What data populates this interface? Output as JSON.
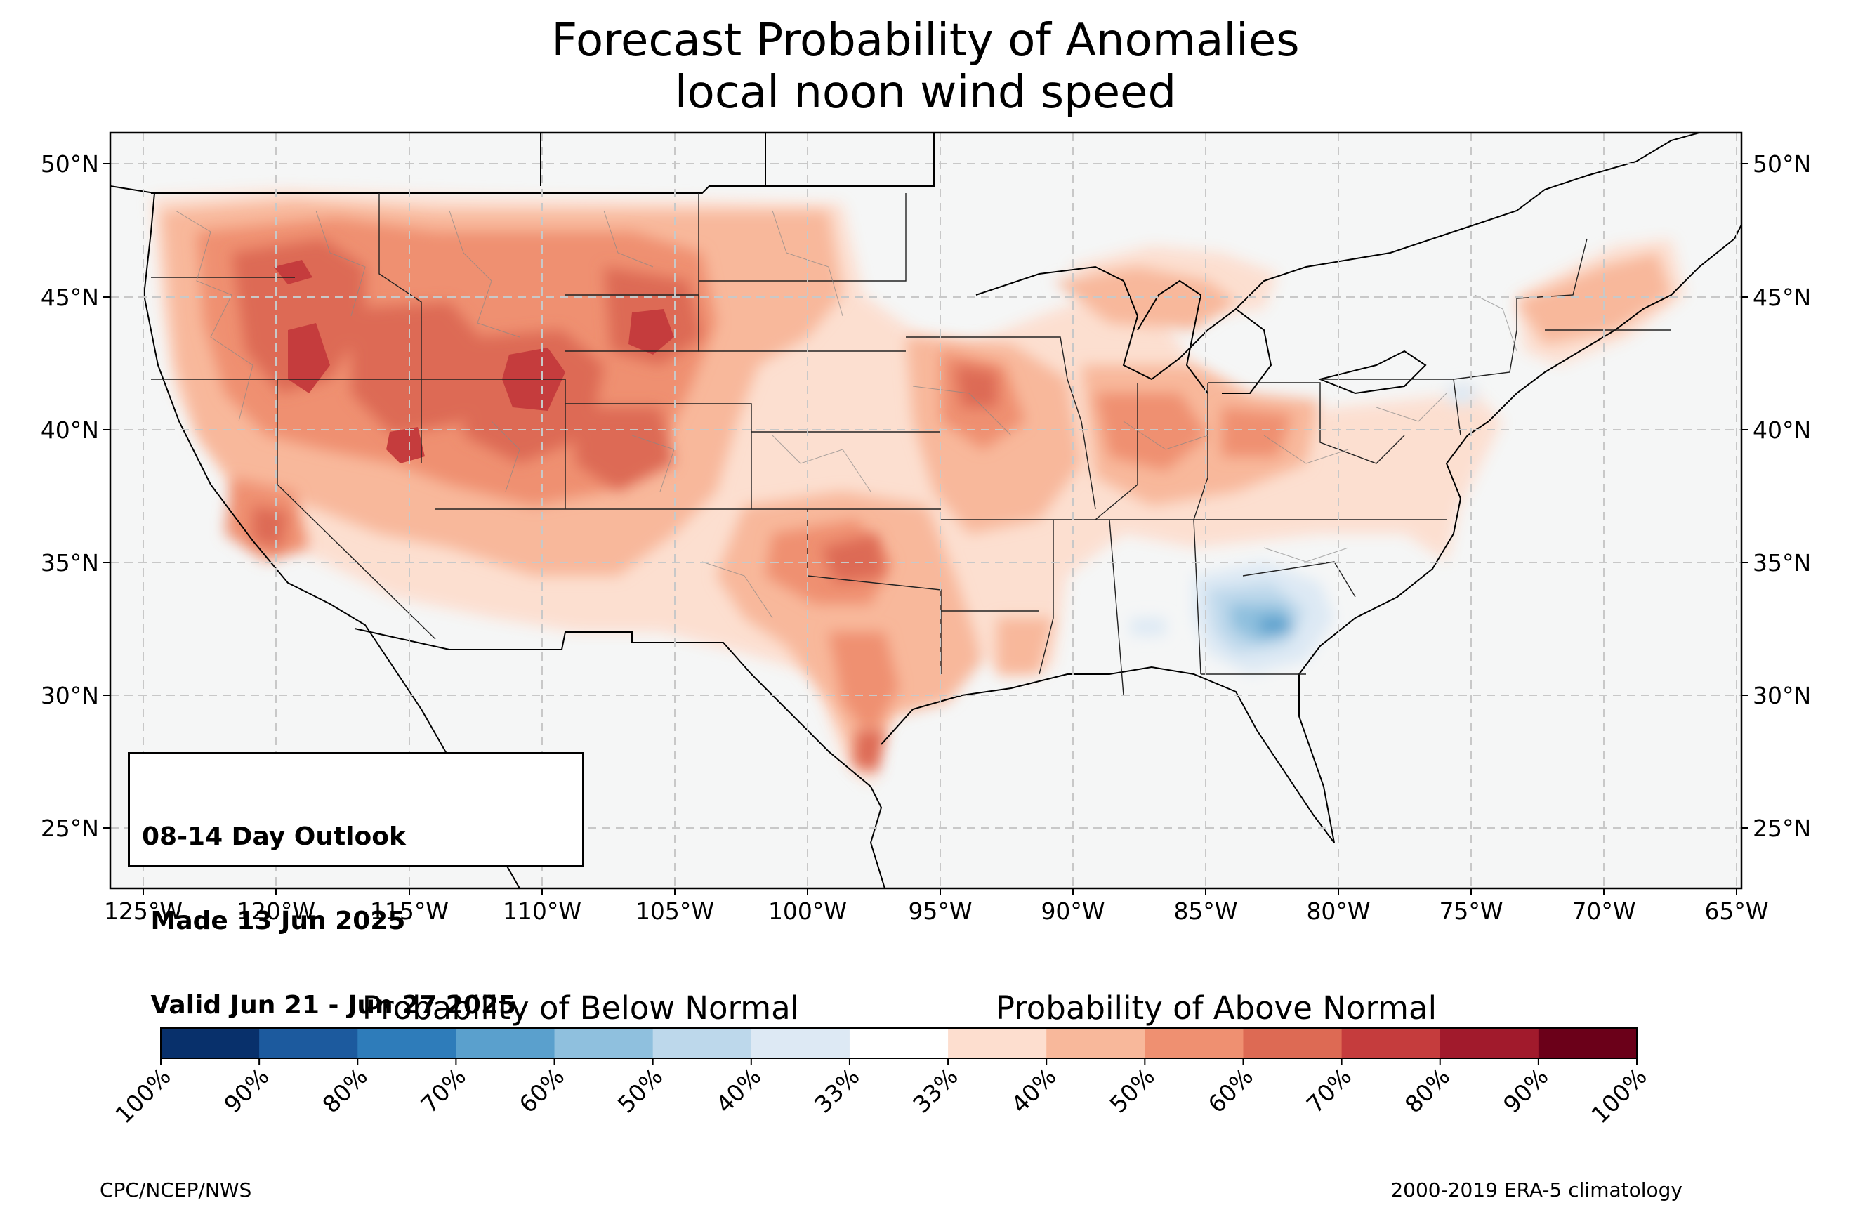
{
  "title": {
    "line1": "Forecast Probability of Anomalies",
    "line2": "local noon wind speed"
  },
  "map": {
    "lat_labels": [
      "50°N",
      "45°N",
      "40°N",
      "35°N",
      "30°N",
      "25°N"
    ],
    "lon_labels": [
      "125°W",
      "120°W",
      "115°W",
      "110°W",
      "105°W",
      "100°W",
      "95°W",
      "90°W",
      "85°W",
      "80°W",
      "75°W",
      "70°W",
      "65°W"
    ],
    "gridlines": true,
    "extent": {
      "lon": [
        -126.3,
        -64.9
      ],
      "lat": [
        22.8,
        51.3
      ]
    }
  },
  "outlook": {
    "line1": "08-14 Day Outlook",
    "line2": " Made 13 Jun 2025",
    "line3": " Valid Jun 21 - Jun 27 2025"
  },
  "colorbar": {
    "below_label": "Probability of Below Normal",
    "above_label": "Probability of Above Normal",
    "tick_labels": [
      "100%",
      "90%",
      "80%",
      "70%",
      "60%",
      "50%",
      "40%",
      "33%",
      "33%",
      "40%",
      "50%",
      "60%",
      "70%",
      "80%",
      "90%",
      "100%"
    ],
    "colors": [
      "#08306b",
      "#1c5a9e",
      "#2e7cba",
      "#5aa0cd",
      "#8fc0de",
      "#bdd8eb",
      "#dde9f4",
      "#ffffff",
      "#fddecf",
      "#f8b89b",
      "#ef9071",
      "#dd6a54",
      "#c53c3d",
      "#a11a2c",
      "#6b0019"
    ]
  },
  "credits": {
    "left": "CPC/NCEP/NWS",
    "right": "2000-2019 ERA-5 climatology"
  },
  "colors": {
    "land": "#f5f6f6",
    "ocean": "#f5f6f6",
    "above_33_40": "#fddecf",
    "above_40_50": "#f8b89b",
    "above_50_60": "#ef9071",
    "above_60_70": "#dd6a54",
    "above_70_80": "#c53c3d",
    "below_33_40": "#dde9f4",
    "below_40_50": "#bdd8eb",
    "below_50_60": "#8fc0de",
    "below_60_70": "#5aa0cd"
  }
}
